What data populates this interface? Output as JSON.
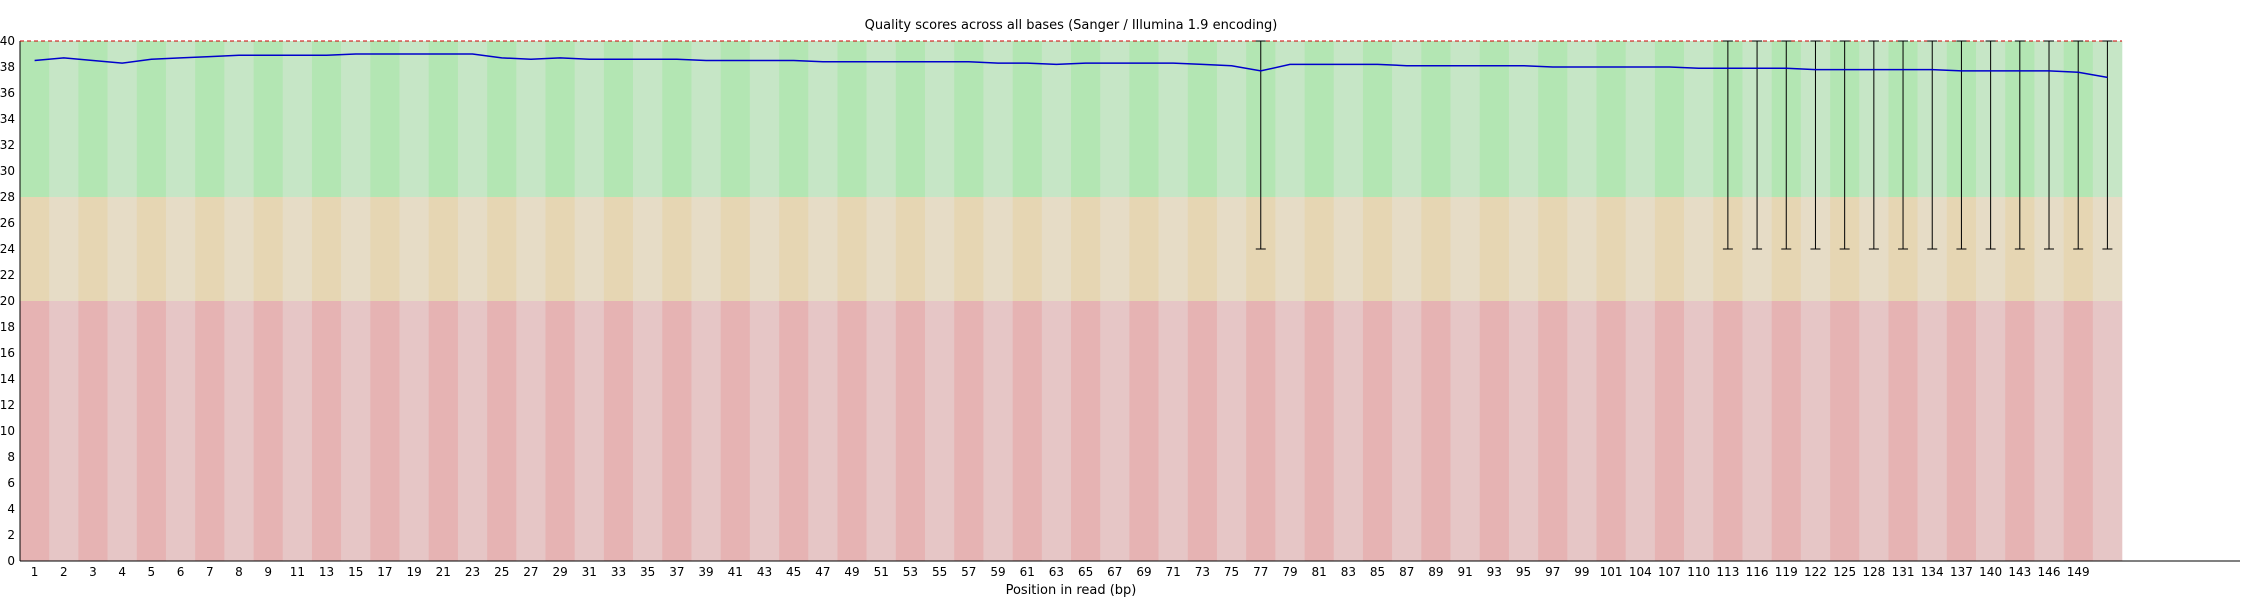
{
  "chart_data": {
    "type": "line",
    "title": "Quality scores across all bases (Sanger / Illumina 1.9 encoding)",
    "xlabel": "Position in read (bp)",
    "ylabel": "",
    "ylim": [
      0,
      40
    ],
    "yticks": [
      0,
      2,
      4,
      6,
      8,
      10,
      12,
      14,
      16,
      18,
      20,
      22,
      24,
      26,
      28,
      30,
      32,
      34,
      36,
      38,
      40
    ],
    "grid": false,
    "legend": "none",
    "quality_bands": [
      {
        "range": [
          28,
          40
        ],
        "colors": [
          "#b3e6b3",
          "#c6e6c6"
        ]
      },
      {
        "range": [
          20,
          28
        ],
        "colors": [
          "#e6d6b3",
          "#e6dcc6"
        ]
      },
      {
        "range": [
          0,
          20
        ],
        "colors": [
          "#e6b3b3",
          "#e6c6c6"
        ]
      }
    ],
    "colors": {
      "mean_line": "#0000cc",
      "error_bar": "#000000",
      "dashed_top": "#cc0000",
      "axis": "#000000"
    },
    "categories": [
      "1",
      "2",
      "3",
      "4",
      "5",
      "6",
      "7",
      "8",
      "9",
      "10-11",
      "12-13",
      "14-15",
      "16-17",
      "18-19",
      "20-21",
      "22-23",
      "24-25",
      "26-27",
      "28-29",
      "30-31",
      "32-33",
      "34-35",
      "36-37",
      "38-39",
      "40-41",
      "42-43",
      "44-45",
      "46-47",
      "48-49",
      "50-51",
      "52-53",
      "54-55",
      "56-57",
      "58-59",
      "60-61",
      "62-63",
      "64-65",
      "66-67",
      "68-69",
      "70-71",
      "72-73",
      "74-75",
      "76-77",
      "78-79",
      "80-81",
      "82-83",
      "84-85",
      "86-87",
      "88-89",
      "90-91",
      "92-93",
      "94-95",
      "96-97",
      "98-99",
      "100-101",
      "102-104",
      "105-107",
      "108-110",
      "111-113",
      "114-116",
      "117-119",
      "120-122",
      "123-125",
      "126-128",
      "129-131",
      "132-134",
      "135-137",
      "138-140",
      "141-143",
      "144-146",
      "147-149",
      "150-151"
    ],
    "tick_labels": [
      "1",
      "2",
      "3",
      "4",
      "5",
      "6",
      "7",
      "8",
      "9",
      "11",
      "13",
      "15",
      "17",
      "19",
      "21",
      "23",
      "25",
      "27",
      "29",
      "31",
      "33",
      "35",
      "37",
      "39",
      "41",
      "43",
      "45",
      "47",
      "49",
      "51",
      "53",
      "55",
      "57",
      "59",
      "61",
      "63",
      "65",
      "67",
      "69",
      "71",
      "73",
      "75",
      "77",
      "79",
      "81",
      "83",
      "85",
      "87",
      "89",
      "91",
      "93",
      "95",
      "97",
      "99",
      "101",
      "104",
      "107",
      "110",
      "113",
      "116",
      "119",
      "122",
      "125",
      "128",
      "131",
      "134",
      "137",
      "140",
      "143",
      "146",
      "149",
      ""
    ],
    "series": [
      {
        "name": "",
        "values": [
          38.5,
          38.7,
          38.5,
          38.3,
          38.6,
          38.7,
          38.8,
          38.9,
          38.9,
          38.9,
          38.9,
          39.0,
          39.0,
          39.0,
          39.0,
          39.0,
          38.7,
          38.6,
          38.7,
          38.6,
          38.6,
          38.6,
          38.6,
          38.5,
          38.5,
          38.5,
          38.5,
          38.4,
          38.4,
          38.4,
          38.4,
          38.4,
          38.4,
          38.3,
          38.3,
          38.2,
          38.3,
          38.3,
          38.3,
          38.3,
          38.2,
          38.1,
          37.7,
          38.2,
          38.2,
          38.2,
          38.2,
          38.1,
          38.1,
          38.1,
          38.1,
          38.1,
          38.0,
          38.0,
          38.0,
          38.0,
          38.0,
          37.9,
          37.9,
          37.9,
          37.9,
          37.8,
          37.8,
          37.8,
          37.8,
          37.8,
          37.7,
          37.7,
          37.7,
          37.7,
          37.6,
          37.2
        ]
      }
    ],
    "error_bars": [
      {
        "category": "76-77",
        "low": 24,
        "high": 40
      },
      {
        "category": "111-113",
        "low": 24,
        "high": 40
      },
      {
        "category": "114-116",
        "low": 24,
        "high": 40
      },
      {
        "category": "117-119",
        "low": 24,
        "high": 40
      },
      {
        "category": "120-122",
        "low": 24,
        "high": 40
      },
      {
        "category": "123-125",
        "low": 24,
        "high": 40
      },
      {
        "category": "126-128",
        "low": 24,
        "high": 40
      },
      {
        "category": "129-131",
        "low": 24,
        "high": 40
      },
      {
        "category": "132-134",
        "low": 24,
        "high": 40
      },
      {
        "category": "135-137",
        "low": 24,
        "high": 40
      },
      {
        "category": "138-140",
        "low": 24,
        "high": 40
      },
      {
        "category": "141-143",
        "low": 24,
        "high": 40
      },
      {
        "category": "144-146",
        "low": 24,
        "high": 40
      },
      {
        "category": "147-149",
        "low": 24,
        "high": 40
      },
      {
        "category": "150-151",
        "low": 24,
        "high": 40
      }
    ]
  }
}
